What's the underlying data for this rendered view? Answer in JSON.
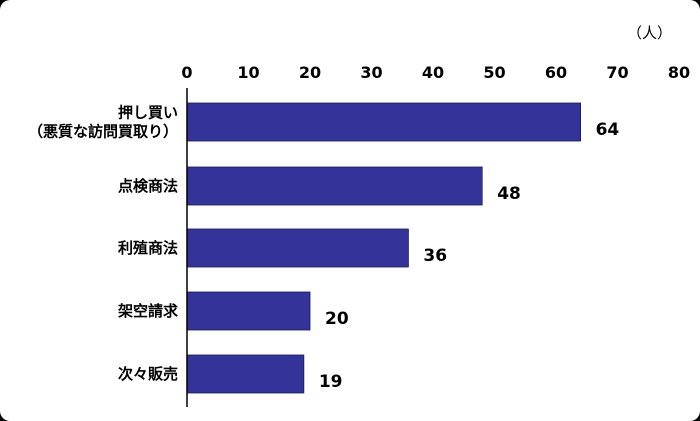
{
  "chart_data": {
    "type": "bar",
    "orientation": "horizontal",
    "unit_label": "（人）",
    "categories": [
      [
        "押し買い",
        "（悪質な訪問買取り）"
      ],
      [
        "点検商法"
      ],
      [
        "利殖商法"
      ],
      [
        "架空請求"
      ],
      [
        "次々販売"
      ]
    ],
    "values": [
      64,
      48,
      36,
      20,
      19
    ],
    "xlim": [
      0,
      80
    ],
    "xticks": [
      0,
      10,
      20,
      30,
      40,
      50,
      60,
      70,
      80
    ],
    "grid": false,
    "bar_color": "#33339a",
    "axis_color": "#000000"
  }
}
